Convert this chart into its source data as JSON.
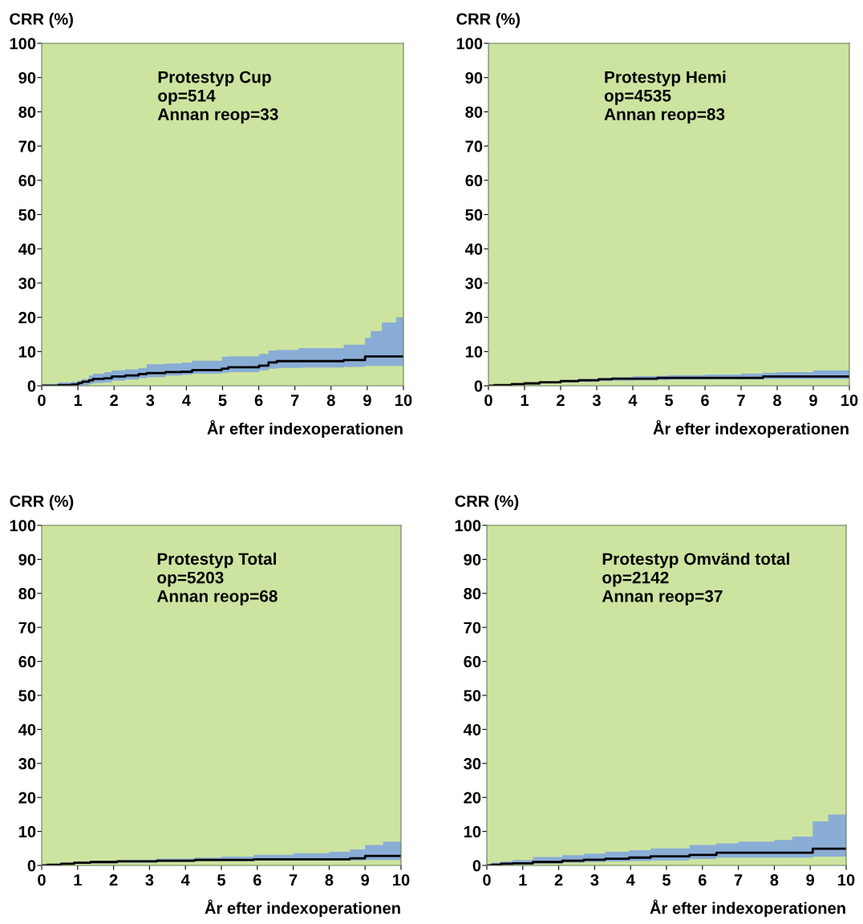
{
  "chart_data": [
    {
      "type": "step",
      "ylabel": "CRR (%)",
      "xlabel": "År efter indexoperationen",
      "annotations": [
        "Protestyp Cup\nop=514\nAnnan reop=33"
      ],
      "xlim": [
        0,
        10
      ],
      "ylim": [
        0,
        100
      ],
      "xticks": [
        0,
        1,
        2,
        3,
        4,
        5,
        6,
        7,
        8,
        9,
        10
      ],
      "yticks": [
        0,
        10,
        20,
        30,
        40,
        50,
        60,
        70,
        80,
        90,
        100
      ],
      "grid": false,
      "legend": false,
      "series": [
        {
          "color": "#000000",
          "x": [
            0,
            0.46,
            0.83,
            1.01,
            1.12,
            1.31,
            1.42,
            1.72,
            1.94,
            2.31,
            2.68,
            2.9,
            3.42,
            3.87,
            4.16,
            4.98,
            5.16,
            6.01,
            6.27,
            6.5,
            7.1,
            8.35,
            8.94,
            9.1,
            9.4,
            9.8,
            10
          ],
          "values": [
            0,
            0.2,
            0.4,
            0.8,
            1.2,
            1.6,
            2.0,
            2.2,
            2.7,
            3.0,
            3.4,
            3.7,
            4.0,
            4.1,
            4.6,
            5.0,
            5.4,
            5.9,
            6.8,
            7.2,
            7.2,
            7.5,
            8.6,
            8.6,
            8.6,
            8.6,
            8.6
          ],
          "upper": [
            0.6,
            1.0,
            1.2,
            1.5,
            2.0,
            3.0,
            3.5,
            4.0,
            4.5,
            4.8,
            5.2,
            6.3,
            6.5,
            6.8,
            7.3,
            8.5,
            8.6,
            9.3,
            10.3,
            10.5,
            11.0,
            12.0,
            14.0,
            16.0,
            18.5,
            20.0,
            20.6
          ],
          "lower": [
            0,
            0,
            0,
            0,
            0.2,
            0.5,
            0.8,
            1.0,
            1.5,
            1.8,
            2.2,
            2.5,
            3.0,
            3.2,
            3.5,
            3.8,
            4.0,
            4.5,
            5.0,
            5.2,
            5.3,
            5.5,
            5.8,
            5.8,
            5.8,
            5.8,
            5.8
          ]
        }
      ]
    },
    {
      "type": "step",
      "ylabel": "CRR (%)",
      "xlabel": "År efter indexoperationen",
      "annotations": [
        "Protestyp Hemi\nop=4535\nAnnan reop=83"
      ],
      "xlim": [
        0,
        10
      ],
      "ylim": [
        0,
        100
      ],
      "xticks": [
        0,
        1,
        2,
        3,
        4,
        5,
        6,
        7,
        8,
        9,
        10
      ],
      "yticks": [
        0,
        10,
        20,
        30,
        40,
        50,
        60,
        70,
        80,
        90,
        100
      ],
      "grid": false,
      "legend": false,
      "series": [
        {
          "color": "#000000",
          "x": [
            0,
            0.16,
            0.64,
            1.0,
            1.42,
            2.0,
            2.5,
            3.05,
            3.42,
            4.0,
            4.68,
            5.0,
            6.0,
            7.0,
            7.61,
            8.0,
            9.0,
            10
          ],
          "values": [
            0,
            0.2,
            0.5,
            0.7,
            1.0,
            1.4,
            1.6,
            1.9,
            2.1,
            2.1,
            2.3,
            2.3,
            2.3,
            2.3,
            2.7,
            2.7,
            2.7,
            2.7
          ],
          "upper": [
            0,
            0.3,
            0.6,
            1.0,
            1.3,
            1.7,
            2.0,
            2.3,
            2.5,
            2.8,
            2.9,
            3.1,
            3.3,
            3.6,
            3.8,
            4.0,
            4.5,
            5.5
          ],
          "lower": [
            0,
            0.1,
            0.3,
            0.5,
            0.7,
            1.0,
            1.2,
            1.4,
            1.5,
            1.6,
            1.7,
            1.8,
            1.9,
            1.9,
            2.0,
            2.0,
            2.0,
            2.0
          ]
        }
      ]
    },
    {
      "type": "step",
      "ylabel": "CRR (%)",
      "xlabel": "År efter indexoperationen",
      "annotations": [
        "Protestyp Total\nop=5203\nAnnan reop=68"
      ],
      "xlim": [
        0,
        10
      ],
      "ylim": [
        0,
        100
      ],
      "xticks": [
        0,
        1,
        2,
        3,
        4,
        5,
        6,
        7,
        8,
        9,
        10
      ],
      "yticks": [
        0,
        10,
        20,
        30,
        40,
        50,
        60,
        70,
        80,
        90,
        100
      ],
      "grid": false,
      "legend": false,
      "series": [
        {
          "color": "#000000",
          "x": [
            0,
            0.16,
            0.54,
            0.9,
            1.36,
            2.1,
            3.2,
            4.26,
            5.0,
            5.9,
            7.0,
            8.0,
            8.58,
            9.0,
            9.5,
            10
          ],
          "values": [
            0,
            0.2,
            0.5,
            0.8,
            1.0,
            1.2,
            1.4,
            1.6,
            1.6,
            1.8,
            1.8,
            1.8,
            2.1,
            2.8,
            2.8,
            2.8
          ],
          "upper": [
            0.3,
            0.5,
            0.8,
            1.2,
            1.4,
            1.6,
            2.0,
            2.3,
            2.6,
            3.1,
            3.6,
            4.0,
            4.7,
            6.0,
            7.0,
            9.0
          ],
          "lower": [
            0,
            0.1,
            0.3,
            0.5,
            0.6,
            0.8,
            1.1,
            1.3,
            1.3,
            1.4,
            1.4,
            1.5,
            1.5,
            1.6,
            1.6,
            1.6
          ]
        }
      ]
    },
    {
      "type": "step",
      "ylabel": "CRR (%)",
      "xlabel": "År efter indexoperationen",
      "annotations": [
        "Protestyp Omvänd total\nop=2142\nAnnan reop=37"
      ],
      "xlim": [
        0,
        10
      ],
      "ylim": [
        0,
        100
      ],
      "xticks": [
        0,
        1,
        2,
        3,
        4,
        5,
        6,
        7,
        8,
        9,
        10
      ],
      "yticks": [
        0,
        10,
        20,
        30,
        40,
        50,
        60,
        70,
        80,
        90,
        100
      ],
      "grid": false,
      "legend": false,
      "series": [
        {
          "color": "#000000",
          "x": [
            0,
            0.13,
            0.39,
            0.72,
            1.28,
            2.1,
            2.7,
            3.3,
            3.96,
            4.56,
            5.64,
            6.39,
            7.0,
            8.0,
            8.5,
            9.07,
            9.5,
            10
          ],
          "values": [
            0,
            0.2,
            0.5,
            0.6,
            1.0,
            1.4,
            1.7,
            2.0,
            2.3,
            2.7,
            3.1,
            3.75,
            3.75,
            3.75,
            3.75,
            4.9,
            4.9,
            4.9
          ],
          "upper": [
            0.3,
            0.8,
            1.2,
            1.6,
            2.5,
            3.0,
            3.5,
            4.0,
            4.5,
            5.0,
            6.0,
            6.5,
            7.0,
            7.5,
            8.5,
            13.0,
            15.0,
            18.0
          ],
          "lower": [
            0,
            0,
            0.2,
            0.4,
            0.6,
            0.8,
            1.0,
            1.2,
            1.3,
            1.5,
            1.9,
            2.3,
            2.3,
            2.3,
            2.3,
            2.6,
            2.6,
            2.6
          ]
        }
      ]
    }
  ]
}
